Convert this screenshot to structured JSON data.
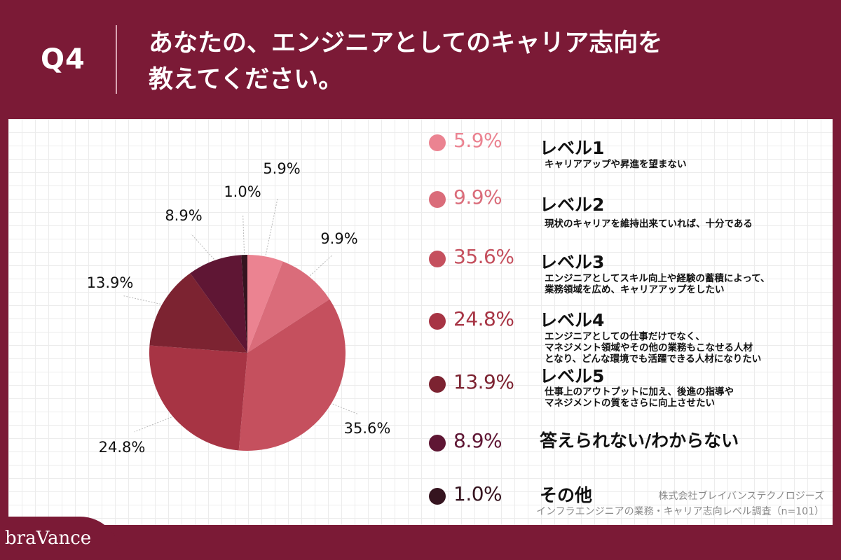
{
  "header": {
    "question_label": "Q4",
    "title_line1": "あなたの、エンジニアとしてのキャリア志向を",
    "title_line2": "教えてください。"
  },
  "chart_data": {
    "type": "pie",
    "title": "",
    "slices": [
      {
        "label": "レベル1",
        "value": 5.9,
        "display": "5.9%",
        "description": "キャリアアップや昇進を望まない",
        "color": "#eb8391"
      },
      {
        "label": "レベル2",
        "value": 9.9,
        "display": "9.9%",
        "description": "現状のキャリアを維持出来ていれば、十分である",
        "color": "#da6c7a"
      },
      {
        "label": "レベル3",
        "value": 35.6,
        "display": "35.6%",
        "description": "エンジニアとしてスキル向上や経験の蓄積によって、\n業務領域を広め、キャリアアップをしたい",
        "color": "#c5505e"
      },
      {
        "label": "レベル4",
        "value": 24.8,
        "display": "24.8%",
        "description": "エンジニアとしての仕事だけでなく、\nマネジメント領域やその他の業務もこなせる人材\nとなり、どんな環境でも活躍できる人材になりたい",
        "color": "#a73444"
      },
      {
        "label": "レベル5",
        "value": 13.9,
        "display": "13.9%",
        "description": "仕事上のアウトプットに加え、後進の指導や\nマネジメントの質をさらに向上させたい",
        "color": "#7c2331"
      },
      {
        "label": "答えられない/わからない",
        "value": 8.9,
        "display": "8.9%",
        "description": "",
        "color": "#5f1634"
      },
      {
        "label": "その他",
        "value": 1.0,
        "display": "1.0%",
        "description": "",
        "color": "#35141f"
      }
    ]
  },
  "footer": {
    "company": "株式会社ブレイバンステクノロジーズ",
    "survey": "インフラエンジニアの業務・キャリア志向レベル調査（n=101）"
  },
  "logo": {
    "text": "braVance"
  }
}
